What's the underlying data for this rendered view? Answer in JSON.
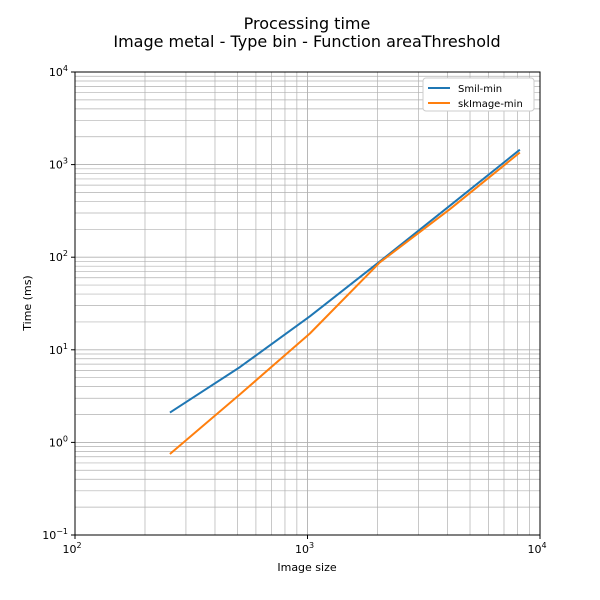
{
  "chart_data": {
    "type": "line",
    "title": "Processing time",
    "subtitle": "Image metal - Type bin - Function areaThreshold",
    "xlabel": "Image size",
    "ylabel": "Time (ms)",
    "xscale": "log",
    "yscale": "log",
    "xlim": [
      100,
      10000
    ],
    "ylim": [
      0.1,
      10000
    ],
    "grid": true,
    "grid_minor": true,
    "legend_position": "upper right",
    "x_tick_values": [
      100,
      1000,
      10000
    ],
    "y_tick_values": [
      0.1,
      1,
      10,
      100,
      1000,
      10000
    ],
    "x_tick_labels": [
      {
        "base": "10",
        "exp": "2"
      },
      {
        "base": "10",
        "exp": "3"
      },
      {
        "base": "10",
        "exp": "4"
      }
    ],
    "y_tick_labels": [
      {
        "base": "10",
        "exp": "−1"
      },
      {
        "base": "10",
        "exp": "0"
      },
      {
        "base": "10",
        "exp": "1"
      },
      {
        "base": "10",
        "exp": "2"
      },
      {
        "base": "10",
        "exp": "3"
      },
      {
        "base": "10",
        "exp": "4"
      }
    ],
    "series": [
      {
        "name": "Smil-min",
        "color": "#1f77b4",
        "x": [
          256,
          512,
          1024,
          2048,
          4096,
          8192
        ],
        "y": [
          2.1,
          6.5,
          23,
          90,
          360,
          1450
        ]
      },
      {
        "name": "skImage-min",
        "color": "#ff7f0e",
        "x": [
          256,
          512,
          1024,
          2048,
          4096,
          8192
        ],
        "y": [
          0.75,
          3.3,
          15,
          88,
          330,
          1350
        ]
      }
    ]
  }
}
